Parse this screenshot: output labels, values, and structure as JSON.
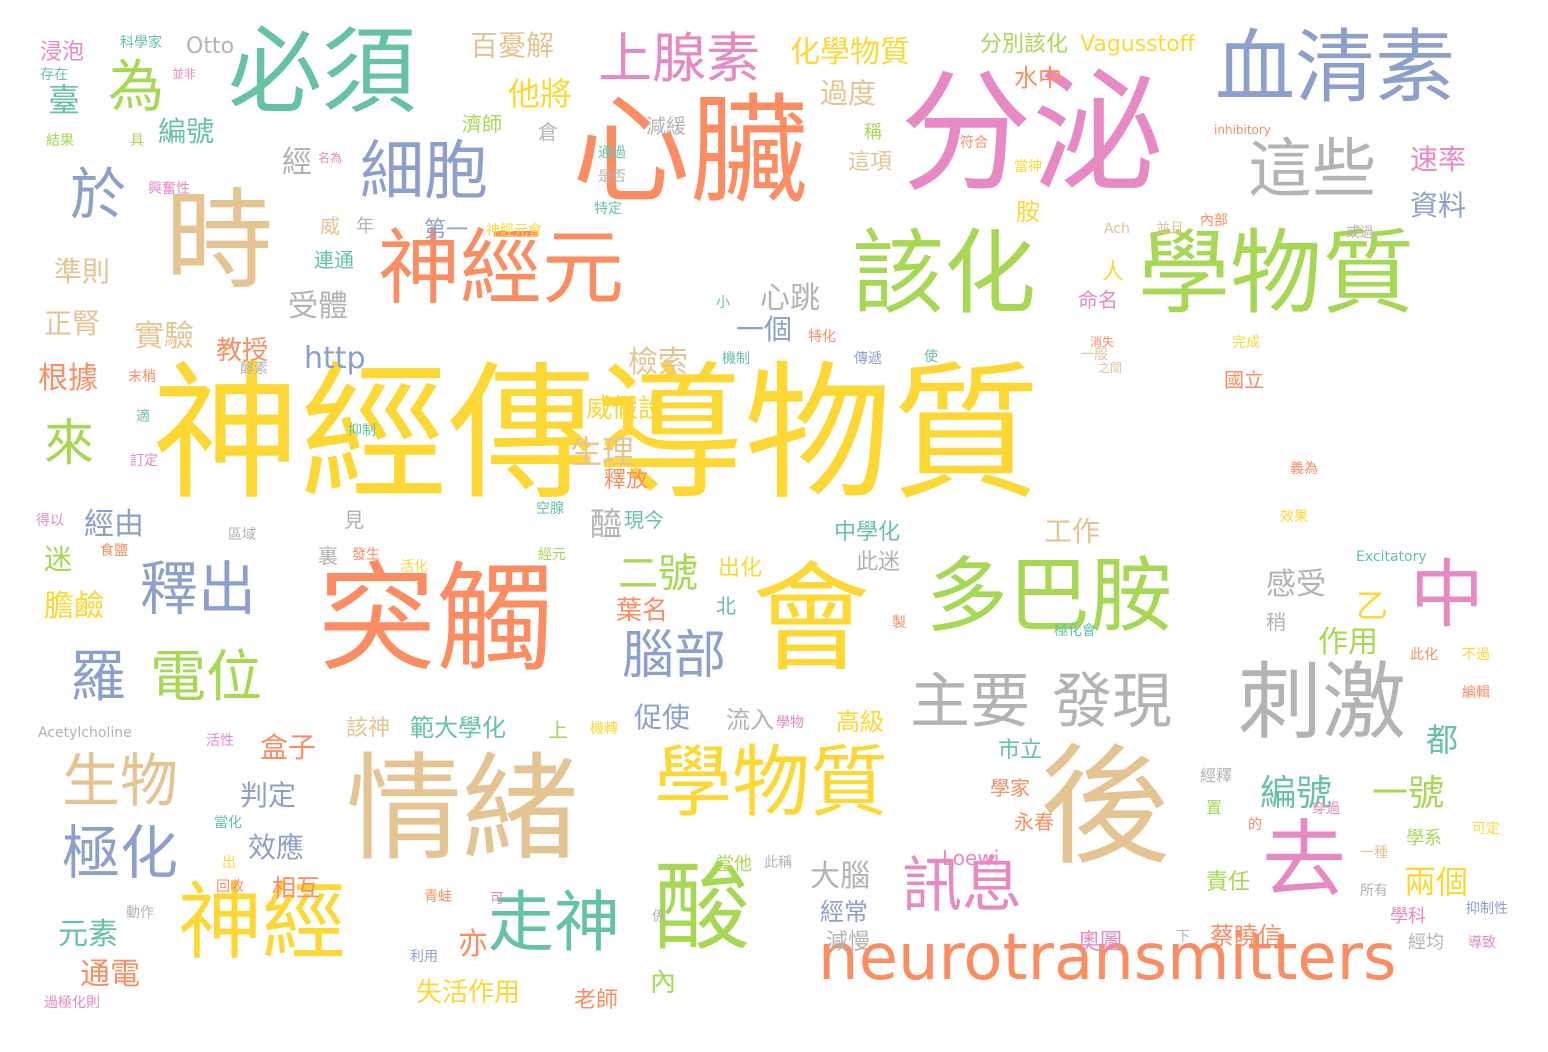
{
  "palette": {
    "yellow": "#fdd835",
    "orange": "#fc8d62",
    "green": "#a6d854",
    "teal": "#66c2a5",
    "blue": "#8da0cb",
    "pink": "#e78ac3",
    "tan": "#e5c494",
    "gray": "#b3b3b3"
  },
  "words": [
    {
      "text": "神經傳導物質",
      "color": "yellow"
    },
    {
      "text": "分泌",
      "color": "pink"
    },
    {
      "text": "心臟",
      "color": "orange"
    },
    {
      "text": "突觸",
      "color": "orange"
    },
    {
      "text": "會",
      "color": "yellow"
    },
    {
      "text": "情緒",
      "color": "tan"
    },
    {
      "text": "後",
      "color": "tan"
    },
    {
      "text": "時",
      "color": "tan"
    },
    {
      "text": "必須",
      "color": "teal"
    },
    {
      "text": "血清素",
      "color": "blue"
    },
    {
      "text": "該化",
      "color": "green"
    },
    {
      "text": "學物質",
      "color": "green"
    },
    {
      "text": "神經元",
      "color": "orange"
    },
    {
      "text": "多巴胺",
      "color": "green"
    },
    {
      "text": "刺激",
      "color": "gray"
    },
    {
      "text": "酸",
      "color": "green"
    },
    {
      "text": "學物質",
      "color": "yellow"
    },
    {
      "text": "神經",
      "color": "yellow"
    },
    {
      "text": "neurotransmitters",
      "color": "orange"
    },
    {
      "text": "去",
      "color": "pink"
    },
    {
      "text": "中",
      "color": "pink"
    },
    {
      "text": "走神",
      "color": "teal"
    },
    {
      "text": "細胞",
      "color": "blue"
    },
    {
      "text": "上腺素",
      "color": "pink"
    },
    {
      "text": "這些",
      "color": "gray"
    },
    {
      "text": "為",
      "color": "green"
    },
    {
      "text": "於",
      "color": "blue"
    },
    {
      "text": "主要",
      "color": "gray"
    },
    {
      "text": "發現",
      "color": "gray"
    },
    {
      "text": "釋出",
      "color": "blue"
    },
    {
      "text": "羅",
      "color": "blue"
    },
    {
      "text": "電位",
      "color": "green"
    },
    {
      "text": "生物",
      "color": "tan"
    },
    {
      "text": "極化",
      "color": "blue"
    },
    {
      "text": "腦部",
      "color": "blue"
    },
    {
      "text": "來",
      "color": "green"
    },
    {
      "text": "訊息",
      "color": "pink"
    },
    {
      "text": "化學物質",
      "color": "yellow"
    },
    {
      "text": "百憂解",
      "color": "tan"
    },
    {
      "text": "他將",
      "color": "yellow"
    },
    {
      "text": "分別該化",
      "color": "green"
    },
    {
      "text": "Vagusstoff",
      "color": "yellow"
    },
    {
      "text": "Otto",
      "color": "gray"
    },
    {
      "text": "科學家",
      "color": "teal"
    },
    {
      "text": "浸泡",
      "color": "pink"
    },
    {
      "text": "存在",
      "color": "teal"
    },
    {
      "text": "並非",
      "color": "pink"
    },
    {
      "text": "臺",
      "color": "teal"
    },
    {
      "text": "結果",
      "color": "green"
    },
    {
      "text": "編號",
      "color": "teal"
    },
    {
      "text": "經",
      "color": "gray"
    },
    {
      "text": "過度",
      "color": "tan"
    },
    {
      "text": "水中",
      "color": "orange"
    },
    {
      "text": "速率",
      "color": "pink"
    },
    {
      "text": "資料",
      "color": "blue"
    },
    {
      "text": "心跳",
      "color": "gray"
    },
    {
      "text": "一個",
      "color": "blue"
    },
    {
      "text": "受體",
      "color": "gray"
    },
    {
      "text": "實驗",
      "color": "tan"
    },
    {
      "text": "準則",
      "color": "tan"
    },
    {
      "text": "正腎",
      "color": "tan"
    },
    {
      "text": "根據",
      "color": "orange"
    },
    {
      "text": "http",
      "color": "blue"
    },
    {
      "text": "教授",
      "color": "orange"
    },
    {
      "text": "檢索",
      "color": "tan"
    },
    {
      "text": "威假設",
      "color": "yellow"
    },
    {
      "text": "生理",
      "color": "tan"
    },
    {
      "text": "醯",
      "color": "gray"
    },
    {
      "text": "現今",
      "color": "teal"
    },
    {
      "text": "釋放",
      "color": "orange"
    },
    {
      "text": "經由",
      "color": "blue"
    },
    {
      "text": "迷",
      "color": "green"
    },
    {
      "text": "膽鹼",
      "color": "yellow"
    },
    {
      "text": "元素",
      "color": "teal"
    },
    {
      "text": "通電",
      "color": "orange"
    },
    {
      "text": "二號",
      "color": "green"
    },
    {
      "text": "葉名",
      "color": "orange"
    },
    {
      "text": "作用",
      "color": "green"
    },
    {
      "text": "感受",
      "color": "gray"
    },
    {
      "text": "乙",
      "color": "yellow"
    },
    {
      "text": "促使",
      "color": "blue"
    },
    {
      "text": "流入",
      "color": "gray"
    },
    {
      "text": "高級",
      "color": "yellow"
    },
    {
      "text": "範大學化",
      "color": "teal"
    },
    {
      "text": "該神",
      "color": "tan"
    },
    {
      "text": "盒子",
      "color": "orange"
    },
    {
      "text": "判定",
      "color": "blue"
    },
    {
      "text": "效應",
      "color": "blue"
    },
    {
      "text": "相互",
      "color": "orange"
    },
    {
      "text": "大腦",
      "color": "gray"
    },
    {
      "text": "經常",
      "color": "blue"
    },
    {
      "text": "減慢",
      "color": "gray"
    },
    {
      "text": "亦",
      "color": "orange"
    },
    {
      "text": "失活作用",
      "color": "yellow"
    },
    {
      "text": "老師",
      "color": "orange"
    },
    {
      "text": "內",
      "color": "green"
    },
    {
      "text": "編號",
      "color": "teal"
    },
    {
      "text": "一號",
      "color": "green"
    },
    {
      "text": "兩個",
      "color": "yellow"
    },
    {
      "text": "責任",
      "color": "green"
    },
    {
      "text": "蔡曉信",
      "color": "orange"
    },
    {
      "text": "奧圖",
      "color": "pink"
    },
    {
      "text": "Loewi",
      "color": "pink"
    },
    {
      "text": "永春",
      "color": "orange"
    },
    {
      "text": "市立",
      "color": "teal"
    },
    {
      "text": "學家",
      "color": "orange"
    },
    {
      "text": "都",
      "color": "teal"
    },
    {
      "text": "中學化",
      "color": "teal"
    },
    {
      "text": "此迷",
      "color": "gray"
    },
    {
      "text": "出化",
      "color": "yellow"
    },
    {
      "text": "工作",
      "color": "tan"
    },
    {
      "text": "人",
      "color": "yellow"
    },
    {
      "text": "命名",
      "color": "pink"
    },
    {
      "text": "胺",
      "color": "yellow"
    },
    {
      "text": "這項",
      "color": "tan"
    },
    {
      "text": "稱",
      "color": "green"
    },
    {
      "text": "第一",
      "color": "blue"
    },
    {
      "text": "連通",
      "color": "teal"
    },
    {
      "text": "年",
      "color": "gray"
    },
    {
      "text": "威",
      "color": "tan"
    },
    {
      "text": "Excitatory",
      "color": "teal"
    },
    {
      "text": "Acetylcholine",
      "color": "gray"
    },
    {
      "text": "inhibitory",
      "color": "orange"
    },
    {
      "text": "Ach",
      "color": "tan"
    },
    {
      "text": "倉",
      "color": "gray"
    },
    {
      "text": "濟師",
      "color": "green"
    },
    {
      "text": "減緩",
      "color": "gray"
    },
    {
      "text": "名為",
      "color": "pink"
    },
    {
      "text": "通過",
      "color": "teal"
    },
    {
      "text": "是否",
      "color": "gray"
    },
    {
      "text": "特定",
      "color": "teal"
    },
    {
      "text": "興奮性",
      "color": "pink"
    },
    {
      "text": "具",
      "color": "green"
    },
    {
      "text": "內部",
      "color": "orange"
    },
    {
      "text": "或過",
      "color": "gray"
    },
    {
      "text": "並且",
      "color": "tan"
    },
    {
      "text": "神經元會",
      "color": "yellow"
    },
    {
      "text": "機制",
      "color": "teal"
    },
    {
      "text": "傳遞",
      "color": "blue"
    },
    {
      "text": "消失",
      "color": "orange"
    },
    {
      "text": "之間",
      "color": "tan"
    },
    {
      "text": "完成",
      "color": "yellow"
    },
    {
      "text": "國立",
      "color": "orange"
    },
    {
      "text": "一般",
      "color": "tan"
    },
    {
      "text": "義為",
      "color": "orange"
    },
    {
      "text": "效果",
      "color": "yellow"
    },
    {
      "text": "酵素",
      "color": "gray"
    },
    {
      "text": "抑制",
      "color": "teal"
    },
    {
      "text": "末梢",
      "color": "orange"
    },
    {
      "text": "訂定",
      "color": "pink"
    },
    {
      "text": "得以",
      "color": "pink"
    },
    {
      "text": "區域",
      "color": "gray"
    },
    {
      "text": "見",
      "color": "gray"
    },
    {
      "text": "裏",
      "color": "gray"
    },
    {
      "text": "發生",
      "color": "orange"
    },
    {
      "text": "活化",
      "color": "yellow"
    },
    {
      "text": "經元",
      "color": "green"
    },
    {
      "text": "空腺",
      "color": "teal"
    },
    {
      "text": "食鹽",
      "color": "orange"
    },
    {
      "text": "當化",
      "color": "teal"
    },
    {
      "text": "出",
      "color": "yellow"
    },
    {
      "text": "回收",
      "color": "orange"
    },
    {
      "text": "動作",
      "color": "gray"
    },
    {
      "text": "青蛙",
      "color": "orange"
    },
    {
      "text": "可",
      "color": "pink"
    },
    {
      "text": "係",
      "color": "gray"
    },
    {
      "text": "利用",
      "color": "blue"
    },
    {
      "text": "下",
      "color": "gray"
    },
    {
      "text": "學系",
      "color": "green"
    },
    {
      "text": "學科",
      "color": "pink"
    },
    {
      "text": "經均",
      "color": "gray"
    },
    {
      "text": "導致",
      "color": "pink"
    },
    {
      "text": "抑制性",
      "color": "blue"
    },
    {
      "text": "可定",
      "color": "yellow"
    },
    {
      "text": "的",
      "color": "orange"
    },
    {
      "text": "穿過",
      "color": "pink"
    },
    {
      "text": "一種",
      "color": "tan"
    },
    {
      "text": "所有",
      "color": "gray"
    },
    {
      "text": "經釋",
      "color": "gray"
    },
    {
      "text": "置",
      "color": "green"
    },
    {
      "text": "此化",
      "color": "orange"
    },
    {
      "text": "不過",
      "color": "yellow"
    },
    {
      "text": "編輯",
      "color": "orange"
    },
    {
      "text": "稍",
      "color": "gray"
    },
    {
      "text": "極化會",
      "color": "teal"
    },
    {
      "text": "製",
      "color": "orange"
    },
    {
      "text": "北",
      "color": "teal"
    },
    {
      "text": "學物",
      "color": "pink"
    },
    {
      "text": "機轉",
      "color": "yellow"
    },
    {
      "text": "上",
      "color": "green"
    },
    {
      "text": "當他",
      "color": "green"
    },
    {
      "text": "此稱",
      "color": "gray"
    },
    {
      "text": "活性",
      "color": "pink"
    },
    {
      "text": "過極化則",
      "color": "pink"
    },
    {
      "text": "小",
      "color": "teal"
    },
    {
      "text": "特化",
      "color": "orange"
    },
    {
      "text": "使",
      "color": "teal"
    },
    {
      "text": "符合",
      "color": "orange"
    },
    {
      "text": "當神",
      "color": "yellow"
    },
    {
      "text": "適",
      "color": "teal"
    }
  ]
}
